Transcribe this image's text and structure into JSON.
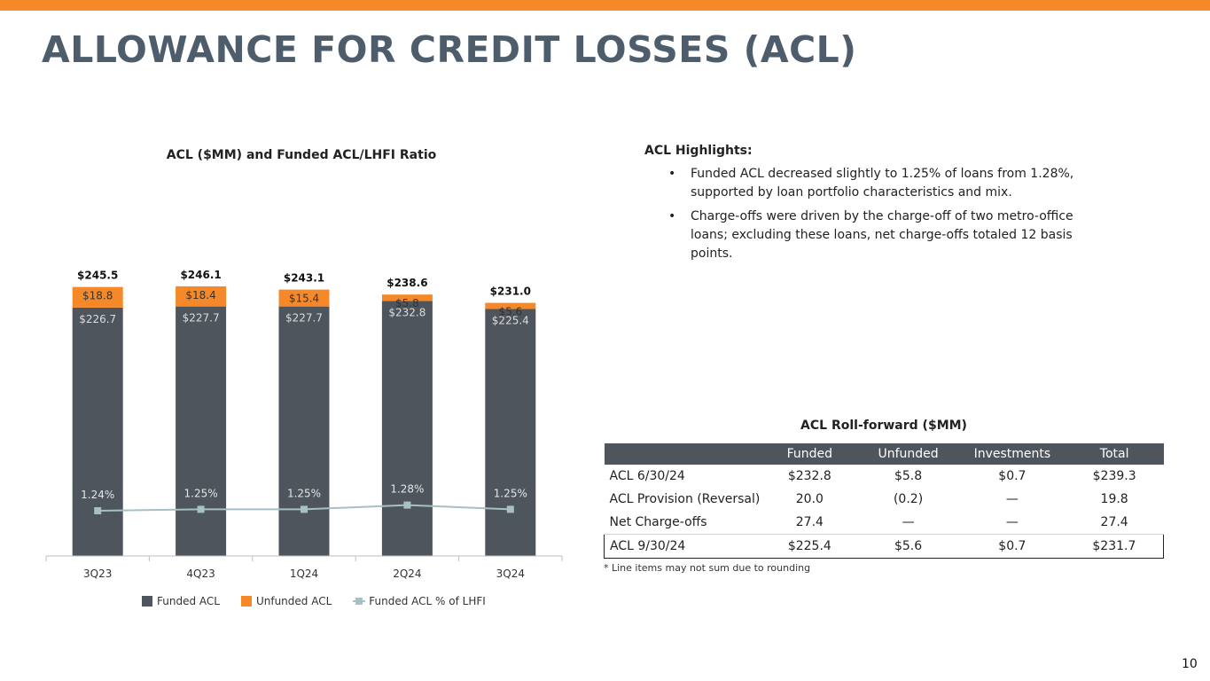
{
  "page": {
    "title": "ALLOWANCE FOR CREDIT LOSSES (ACL)",
    "page_number": "10"
  },
  "colors": {
    "accent": "#f5892a",
    "funded": "#4f555d",
    "unfunded": "#f5892a",
    "ratio_line": "#a6c0c3",
    "title": "#4d5d6b"
  },
  "chart_data": {
    "type": "bar",
    "title": "ACL ($MM) and Funded ACL/LHFI Ratio",
    "categories": [
      "3Q23",
      "4Q23",
      "1Q24",
      "2Q24",
      "3Q24"
    ],
    "series": [
      {
        "name": "Funded ACL",
        "values": [
          226.7,
          227.7,
          227.7,
          232.8,
          225.4
        ],
        "labels": [
          "$226.7",
          "$227.7",
          "$227.7",
          "$232.8",
          "$225.4"
        ]
      },
      {
        "name": "Unfunded ACL",
        "values": [
          18.8,
          18.4,
          15.4,
          5.8,
          5.6
        ],
        "labels": [
          "$18.8",
          "$18.4",
          "$15.4",
          "$5.8",
          "$5.6"
        ]
      },
      {
        "name": "Funded ACL % of LHFI",
        "type": "line",
        "values": [
          1.24,
          1.25,
          1.25,
          1.28,
          1.25
        ],
        "labels": [
          "1.24%",
          "1.25%",
          "1.25%",
          "1.28%",
          "1.25%"
        ]
      }
    ],
    "totals": {
      "values": [
        245.5,
        246.1,
        243.1,
        238.6,
        231.0
      ],
      "labels": [
        "$245.5",
        "$246.1",
        "$243.1",
        "$238.6",
        "$231.0"
      ]
    },
    "stacked": true,
    "ylim": [
      0,
      280
    ],
    "legend_position": "bottom",
    "grid": false
  },
  "highlights": {
    "title": "ACL Highlights:",
    "items": [
      "Funded ACL decreased slightly to 1.25% of loans from 1.28%, supported by loan portfolio characteristics and mix.",
      "Charge-offs were driven by the charge-off of two metro-office loans; excluding these loans, net charge-offs totaled 12 basis points."
    ]
  },
  "rollforward": {
    "title": "ACL Roll-forward ($MM)",
    "headers": [
      "",
      "Funded",
      "Unfunded",
      "Investments",
      "Total"
    ],
    "rows": [
      {
        "label": "ACL  6/30/24",
        "cells": [
          "$232.8",
          "$5.8",
          "$0.7",
          "$239.3"
        ]
      },
      {
        "label": "ACL Provision (Reversal)",
        "cells": [
          "20.0",
          "(0.2)",
          "—",
          "19.8"
        ]
      },
      {
        "label": "Net Charge-offs",
        "cells": [
          "27.4",
          "—",
          "—",
          "27.4"
        ]
      },
      {
        "label": "ACL  9/30/24",
        "cells": [
          "$225.4",
          "$5.6",
          "$0.7",
          "$231.7"
        ]
      }
    ],
    "footnote": "* Line items may not sum due to rounding"
  }
}
